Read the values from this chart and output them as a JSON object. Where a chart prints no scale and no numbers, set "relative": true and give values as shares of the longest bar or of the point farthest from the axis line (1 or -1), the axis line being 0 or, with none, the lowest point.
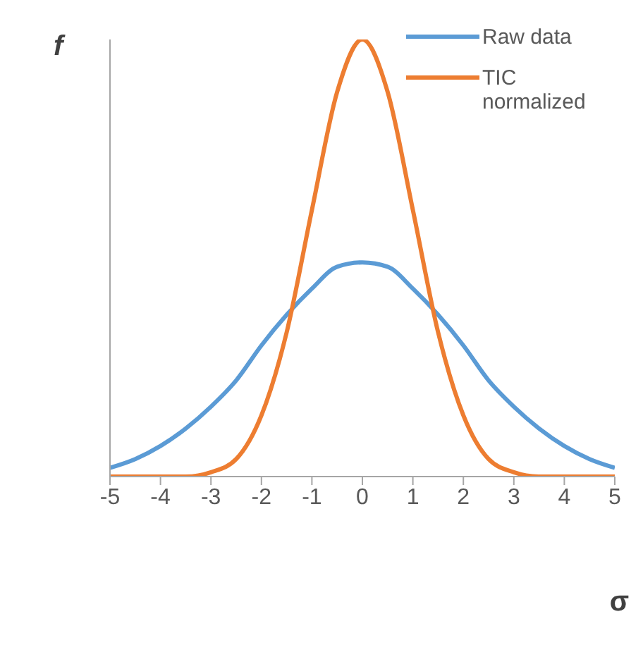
{
  "chart_data": {
    "type": "line",
    "xlabel": "σ",
    "ylabel": "f",
    "relative": true,
    "legend": "top right",
    "grid": false,
    "marker": "none",
    "line_style": "solid",
    "x": [
      -5,
      -4.5,
      -4,
      -3.5,
      -3,
      -2.5,
      -2,
      -1.5,
      -1,
      -0.5,
      0,
      0.5,
      1,
      1.5,
      2,
      2.5,
      3,
      3.5,
      4,
      4.5,
      5
    ],
    "xlim": [
      -5,
      5
    ],
    "xticks": [
      -5,
      -4,
      -3,
      -2,
      -1,
      0,
      1,
      2,
      3,
      4,
      5
    ],
    "series": [
      {
        "name": "Raw data",
        "color": "#5b9bd5",
        "values": [
          0.02,
          0.04,
          0.07,
          0.11,
          0.16,
          0.22,
          0.3,
          0.37,
          0.43,
          0.48,
          0.49,
          0.48,
          0.43,
          0.37,
          0.3,
          0.22,
          0.16,
          0.11,
          0.07,
          0.04,
          0.02
        ]
      },
      {
        "name": "TIC normalized",
        "color": "#ed7d31",
        "values": [
          0,
          0,
          0,
          0,
          0.01,
          0.04,
          0.14,
          0.33,
          0.61,
          0.88,
          1,
          0.88,
          0.61,
          0.33,
          0.14,
          0.04,
          0.01,
          0,
          0,
          0,
          0
        ]
      }
    ]
  }
}
